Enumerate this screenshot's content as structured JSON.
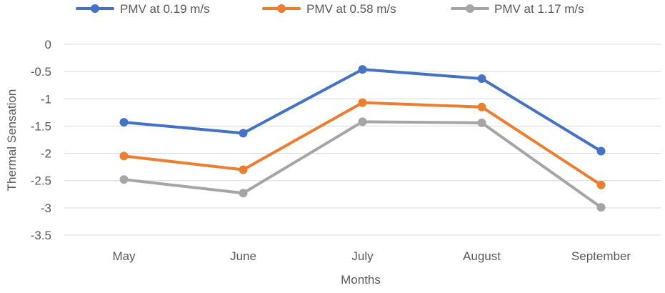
{
  "chart_data": {
    "type": "line",
    "title": "",
    "xlabel": "Months",
    "ylabel": "Thermal Sensation",
    "categories": [
      "May",
      "June",
      "July",
      "August",
      "September"
    ],
    "ylim": [
      -3.5,
      0
    ],
    "yticks": [
      0,
      -0.5,
      -1,
      -1.5,
      -2,
      -2.5,
      -3,
      -3.5
    ],
    "ytick_labels": [
      "0",
      "-0.5",
      "-1",
      "-1.5",
      "-2",
      "-2.5",
      "-3",
      "-3.5"
    ],
    "grid": true,
    "legend_position": "top",
    "series": [
      {
        "name": "PMV at 0.19 m/s",
        "color": "#4472c4",
        "values": [
          -1.43,
          -1.63,
          -0.46,
          -0.63,
          -1.96
        ]
      },
      {
        "name": "PMV at 0.58 m/s",
        "color": "#ed7d31",
        "values": [
          -2.05,
          -2.3,
          -1.07,
          -1.15,
          -2.58
        ]
      },
      {
        "name": "PMV at 1.17 m/s",
        "color": "#a5a5a5",
        "values": [
          -2.48,
          -2.73,
          -1.42,
          -1.44,
          -2.99
        ]
      }
    ]
  }
}
